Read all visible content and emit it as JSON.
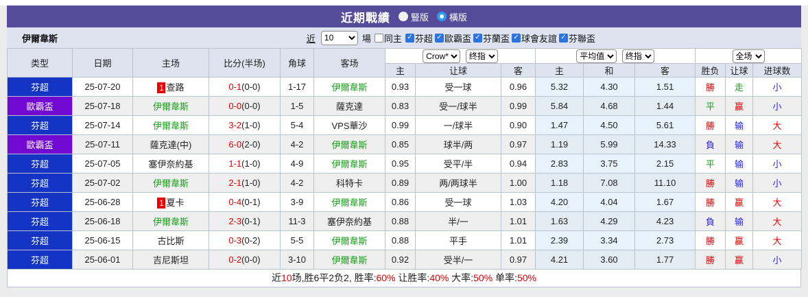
{
  "title_bar": {
    "title": "近期戰績",
    "radios": [
      {
        "label": "豎版",
        "checked": false
      },
      {
        "label": "橫版",
        "checked": true
      }
    ]
  },
  "filter_bar": {
    "team_name": "伊爾韋斯",
    "near_label": "近",
    "near_count": "10",
    "matches_label": "場",
    "same_home_label": "同主",
    "leagues": [
      {
        "label": "芬超",
        "checked": true
      },
      {
        "label": "歐霸盃",
        "checked": true
      },
      {
        "label": "芬蘭盃",
        "checked": true
      },
      {
        "label": "球會友誼",
        "checked": true
      },
      {
        "label": "芬聯盃",
        "checked": true
      }
    ]
  },
  "table": {
    "dropdowns": {
      "odds_source": "Crow*",
      "odds_source_time": "终指",
      "avg_type": "平均值",
      "avg_time": "终指",
      "scope": "全场"
    },
    "headers": {
      "type": "类型",
      "date": "日期",
      "home": "主场",
      "score": "比分(半场)",
      "corners": "角球",
      "away": "客场",
      "odds_home": "主",
      "odds_handicap": "让球",
      "odds_away": "客",
      "avg_home": "主",
      "avg_draw": "和",
      "avg_away": "客",
      "result": "胜负",
      "handicap": "让球",
      "goals": "进球数"
    },
    "rows": [
      {
        "type": "芬超",
        "type_color": "#1334c4",
        "date": "25-07-20",
        "home": {
          "badge": "1",
          "name": "查路",
          "highlight": false
        },
        "score_ft": "0-1",
        "score_ht": "(0-0)",
        "corners": "1-17",
        "away": {
          "badge": "",
          "name": "伊爾韋斯",
          "highlight": true
        },
        "odds": {
          "home": "0.93",
          "handicap": "受一球",
          "away": "0.96"
        },
        "avg": {
          "home": "5.32",
          "draw": "4.30",
          "away": "1.51"
        },
        "result": {
          "text": "勝",
          "color": "red"
        },
        "handicap_result": {
          "text": "走",
          "color": "green"
        },
        "goals": {
          "text": "小",
          "color": "blue"
        }
      },
      {
        "type": "歐霸盃",
        "type_color": "#7209d2",
        "date": "25-07-18",
        "home": {
          "badge": "",
          "name": "伊爾韋斯",
          "highlight": true
        },
        "score_ft": "0-0",
        "score_ht": "(0-0)",
        "corners": "1-5",
        "away": {
          "badge": "",
          "name": "薩克達",
          "highlight": false
        },
        "odds": {
          "home": "0.83",
          "handicap": "受一/球半",
          "away": "0.99"
        },
        "avg": {
          "home": "5.84",
          "draw": "4.68",
          "away": "1.44"
        },
        "result": {
          "text": "平",
          "color": "green"
        },
        "handicap_result": {
          "text": "赢",
          "color": "red"
        },
        "goals": {
          "text": "小",
          "color": "blue"
        }
      },
      {
        "type": "芬超",
        "type_color": "#1334c4",
        "date": "25-07-14",
        "home": {
          "badge": "",
          "name": "伊爾韋斯",
          "highlight": true
        },
        "score_ft": "3-2",
        "score_ht": "(1-0)",
        "corners": "5-4",
        "away": {
          "badge": "",
          "name": "VPS華沙",
          "highlight": false
        },
        "odds": {
          "home": "0.99",
          "handicap": "一/球半",
          "away": "0.90"
        },
        "avg": {
          "home": "1.47",
          "draw": "4.50",
          "away": "5.61"
        },
        "result": {
          "text": "勝",
          "color": "red"
        },
        "handicap_result": {
          "text": "输",
          "color": "blue"
        },
        "goals": {
          "text": "大",
          "color": "red"
        }
      },
      {
        "type": "歐霸盃",
        "type_color": "#7209d2",
        "date": "25-07-11",
        "home": {
          "badge": "",
          "name": "薩克達(中)",
          "highlight": false
        },
        "score_ft": "6-0",
        "score_ht": "(2-0)",
        "corners": "4-2",
        "away": {
          "badge": "",
          "name": "伊爾韋斯",
          "highlight": true
        },
        "odds": {
          "home": "0.85",
          "handicap": "球半/两",
          "away": "0.97"
        },
        "avg": {
          "home": "1.19",
          "draw": "5.99",
          "away": "14.33"
        },
        "result": {
          "text": "負",
          "color": "blue"
        },
        "handicap_result": {
          "text": "输",
          "color": "blue"
        },
        "goals": {
          "text": "大",
          "color": "red"
        }
      },
      {
        "type": "芬超",
        "type_color": "#1334c4",
        "date": "25-07-05",
        "home": {
          "badge": "",
          "name": "塞伊奈約基",
          "highlight": false
        },
        "score_ft": "1-1",
        "score_ht": "(1-0)",
        "corners": "4-9",
        "away": {
          "badge": "",
          "name": "伊爾韋斯",
          "highlight": true
        },
        "odds": {
          "home": "0.95",
          "handicap": "受平/半",
          "away": "0.94"
        },
        "avg": {
          "home": "2.83",
          "draw": "3.75",
          "away": "2.15"
        },
        "result": {
          "text": "平",
          "color": "green"
        },
        "handicap_result": {
          "text": "输",
          "color": "blue"
        },
        "goals": {
          "text": "小",
          "color": "blue"
        }
      },
      {
        "type": "芬超",
        "type_color": "#1334c4",
        "date": "25-07-02",
        "home": {
          "badge": "",
          "name": "伊爾韋斯",
          "highlight": true
        },
        "score_ft": "2-1",
        "score_ht": "(1-0)",
        "corners": "4-2",
        "away": {
          "badge": "",
          "name": "科特卡",
          "highlight": false
        },
        "odds": {
          "home": "0.89",
          "handicap": "两/两球半",
          "away": "1.00"
        },
        "avg": {
          "home": "1.18",
          "draw": "7.08",
          "away": "11.10"
        },
        "result": {
          "text": "勝",
          "color": "red"
        },
        "handicap_result": {
          "text": "输",
          "color": "blue"
        },
        "goals": {
          "text": "小",
          "color": "blue"
        }
      },
      {
        "type": "芬超",
        "type_color": "#1334c4",
        "date": "25-06-28",
        "home": {
          "badge": "1",
          "name": "夏卡",
          "highlight": false
        },
        "score_ft": "0-4",
        "score_ht": "(0-1)",
        "corners": "3-9",
        "away": {
          "badge": "",
          "name": "伊爾韋斯",
          "highlight": true
        },
        "odds": {
          "home": "0.86",
          "handicap": "受一球",
          "away": "1.03"
        },
        "avg": {
          "home": "4.20",
          "draw": "4.04",
          "away": "1.67"
        },
        "result": {
          "text": "勝",
          "color": "red"
        },
        "handicap_result": {
          "text": "赢",
          "color": "red"
        },
        "goals": {
          "text": "大",
          "color": "red"
        }
      },
      {
        "type": "芬超",
        "type_color": "#1334c4",
        "date": "25-06-18",
        "home": {
          "badge": "",
          "name": "伊爾韋斯",
          "highlight": true
        },
        "score_ft": "2-3",
        "score_ht": "(0-1)",
        "corners": "11-3",
        "away": {
          "badge": "",
          "name": "塞伊奈約基",
          "highlight": false
        },
        "odds": {
          "home": "0.88",
          "handicap": "半/一",
          "away": "1.01"
        },
        "avg": {
          "home": "1.63",
          "draw": "4.29",
          "away": "4.23"
        },
        "result": {
          "text": "負",
          "color": "blue"
        },
        "handicap_result": {
          "text": "输",
          "color": "blue"
        },
        "goals": {
          "text": "大",
          "color": "red"
        }
      },
      {
        "type": "芬超",
        "type_color": "#1334c4",
        "date": "25-06-15",
        "home": {
          "badge": "",
          "name": "古比斯",
          "highlight": false
        },
        "score_ft": "0-3",
        "score_ht": "(0-2)",
        "corners": "5-5",
        "away": {
          "badge": "",
          "name": "伊爾韋斯",
          "highlight": true
        },
        "odds": {
          "home": "0.88",
          "handicap": "平手",
          "away": "1.01"
        },
        "avg": {
          "home": "2.39",
          "draw": "3.34",
          "away": "2.73"
        },
        "result": {
          "text": "勝",
          "color": "red"
        },
        "handicap_result": {
          "text": "赢",
          "color": "red"
        },
        "goals": {
          "text": "大",
          "color": "red"
        }
      },
      {
        "type": "芬超",
        "type_color": "#1334c4",
        "date": "25-06-01",
        "home": {
          "badge": "",
          "name": "吉尼斯坦",
          "highlight": false
        },
        "score_ft": "0-2",
        "score_ht": "(0-0)",
        "corners": "3-10",
        "away": {
          "badge": "",
          "name": "伊爾韋斯",
          "highlight": true
        },
        "odds": {
          "home": "0.92",
          "handicap": "受半/一",
          "away": "0.97"
        },
        "avg": {
          "home": "4.21",
          "draw": "3.60",
          "away": "1.77"
        },
        "result": {
          "text": "勝",
          "color": "red"
        },
        "handicap_result": {
          "text": "赢",
          "color": "red"
        },
        "goals": {
          "text": "小",
          "color": "blue"
        }
      }
    ]
  },
  "footer": {
    "parts": [
      {
        "text": "近",
        "color": "black"
      },
      {
        "text": "10",
        "color": "red"
      },
      {
        "text": "场,胜6平2负2, 胜率:",
        "color": "black"
      },
      {
        "text": "60%",
        "color": "red"
      },
      {
        "text": " 让胜率:",
        "color": "black"
      },
      {
        "text": "40%",
        "color": "red"
      },
      {
        "text": " 大率:",
        "color": "black"
      },
      {
        "text": "50%",
        "color": "red"
      },
      {
        "text": " 单率:",
        "color": "black"
      },
      {
        "text": "50%",
        "color": "red"
      }
    ]
  },
  "colors": {
    "title_bar_bg": "#564a9b",
    "header_bg": "#dde3ef",
    "league_fin_super": "#1334c4",
    "league_europa": "#7209d2",
    "accent_red": "#e60000",
    "accent_green": "#1a9c1a",
    "accent_blue": "#2424e8",
    "team_highlight": "#1a9c1a",
    "avg_col_tint": "#e9f3fb"
  }
}
